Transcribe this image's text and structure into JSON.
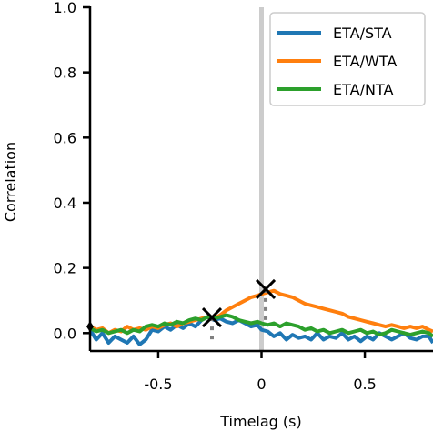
{
  "chart_data": {
    "type": "line",
    "title": "",
    "xlabel": "Timelag (s)",
    "ylabel": "Correlation",
    "xlim": [
      -0.83,
      0.83
    ],
    "ylim": [
      -0.055,
      1.0
    ],
    "x_ticks": [
      -0.5,
      0,
      0.5
    ],
    "x_tick_labels": [
      "-0.5",
      "0",
      "0.5"
    ],
    "y_ticks": [
      0.0,
      0.2,
      0.4,
      0.6,
      0.8,
      1.0
    ],
    "y_tick_labels": [
      "0.0",
      "0.2",
      "0.4",
      "0.6",
      "0.8",
      "1.0"
    ],
    "grid": false,
    "legend_position": "top-right",
    "zero_line": {
      "x": 0,
      "color": "#cccccc"
    },
    "series": [
      {
        "name": "ETA/STA",
        "color": "#1f77b4",
        "x": [
          -0.83,
          -0.8,
          -0.77,
          -0.74,
          -0.71,
          -0.68,
          -0.65,
          -0.62,
          -0.59,
          -0.56,
          -0.53,
          -0.5,
          -0.47,
          -0.44,
          -0.41,
          -0.38,
          -0.35,
          -0.32,
          -0.29,
          -0.26,
          -0.23,
          -0.2,
          -0.17,
          -0.14,
          -0.11,
          -0.08,
          -0.05,
          -0.02,
          0.0,
          0.03,
          0.06,
          0.09,
          0.12,
          0.15,
          0.18,
          0.21,
          0.24,
          0.27,
          0.3,
          0.33,
          0.36,
          0.39,
          0.42,
          0.45,
          0.48,
          0.51,
          0.54,
          0.57,
          0.6,
          0.63,
          0.66,
          0.69,
          0.72,
          0.75,
          0.78,
          0.81,
          0.83
        ],
        "y": [
          0.01,
          -0.02,
          0.0,
          -0.03,
          -0.01,
          -0.02,
          -0.03,
          -0.01,
          -0.035,
          -0.02,
          0.01,
          0.005,
          0.02,
          0.01,
          0.025,
          0.015,
          0.03,
          0.02,
          0.04,
          0.05,
          0.04,
          0.045,
          0.035,
          0.03,
          0.04,
          0.03,
          0.02,
          0.025,
          0.01,
          0.005,
          -0.01,
          0.0,
          -0.02,
          -0.005,
          -0.015,
          -0.01,
          -0.02,
          0.0,
          -0.02,
          -0.01,
          -0.015,
          0.0,
          -0.02,
          -0.01,
          -0.025,
          -0.01,
          -0.02,
          0.0,
          -0.01,
          -0.02,
          -0.01,
          0.0,
          -0.015,
          -0.02,
          -0.01,
          -0.01,
          -0.03
        ]
      },
      {
        "name": "ETA/WTA",
        "color": "#ff7f0e",
        "x": [
          -0.83,
          -0.8,
          -0.77,
          -0.74,
          -0.71,
          -0.68,
          -0.65,
          -0.62,
          -0.59,
          -0.56,
          -0.53,
          -0.5,
          -0.47,
          -0.44,
          -0.41,
          -0.38,
          -0.35,
          -0.32,
          -0.29,
          -0.26,
          -0.23,
          -0.2,
          -0.17,
          -0.14,
          -0.11,
          -0.08,
          -0.05,
          -0.02,
          0.0,
          0.03,
          0.06,
          0.09,
          0.12,
          0.15,
          0.18,
          0.21,
          0.24,
          0.27,
          0.3,
          0.33,
          0.36,
          0.39,
          0.42,
          0.45,
          0.48,
          0.51,
          0.54,
          0.57,
          0.6,
          0.63,
          0.66,
          0.69,
          0.72,
          0.75,
          0.78,
          0.81,
          0.83
        ],
        "y": [
          0.02,
          0.01,
          0.015,
          0.0,
          0.01,
          0.005,
          0.02,
          0.01,
          0.015,
          0.01,
          0.02,
          0.015,
          0.025,
          0.03,
          0.02,
          0.03,
          0.035,
          0.04,
          0.045,
          0.05,
          0.045,
          0.055,
          0.07,
          0.08,
          0.09,
          0.1,
          0.11,
          0.115,
          0.12,
          0.125,
          0.13,
          0.12,
          0.115,
          0.11,
          0.1,
          0.09,
          0.085,
          0.08,
          0.075,
          0.07,
          0.065,
          0.06,
          0.05,
          0.045,
          0.04,
          0.035,
          0.03,
          0.025,
          0.02,
          0.025,
          0.02,
          0.015,
          0.02,
          0.015,
          0.02,
          0.01,
          0.005
        ]
      },
      {
        "name": "ETA/NTA",
        "color": "#2ca02c",
        "x": [
          -0.83,
          -0.8,
          -0.77,
          -0.74,
          -0.71,
          -0.68,
          -0.65,
          -0.62,
          -0.59,
          -0.56,
          -0.53,
          -0.5,
          -0.47,
          -0.44,
          -0.41,
          -0.38,
          -0.35,
          -0.32,
          -0.29,
          -0.26,
          -0.23,
          -0.2,
          -0.17,
          -0.14,
          -0.11,
          -0.08,
          -0.05,
          -0.02,
          0.0,
          0.03,
          0.06,
          0.09,
          0.12,
          0.15,
          0.18,
          0.21,
          0.24,
          0.27,
          0.3,
          0.33,
          0.36,
          0.39,
          0.42,
          0.45,
          0.48,
          0.51,
          0.54,
          0.57,
          0.6,
          0.63,
          0.66,
          0.69,
          0.72,
          0.75,
          0.78,
          0.81,
          0.83
        ],
        "y": [
          0.015,
          0.005,
          0.01,
          0.0,
          0.005,
          0.01,
          0.0,
          0.01,
          0.005,
          0.02,
          0.025,
          0.02,
          0.03,
          0.025,
          0.035,
          0.03,
          0.04,
          0.045,
          0.04,
          0.05,
          0.045,
          0.05,
          0.055,
          0.05,
          0.04,
          0.035,
          0.03,
          0.035,
          0.03,
          0.025,
          0.03,
          0.02,
          0.03,
          0.025,
          0.02,
          0.01,
          0.015,
          0.005,
          0.01,
          0.0,
          0.005,
          0.01,
          0.0,
          0.005,
          0.01,
          0.0,
          0.005,
          -0.005,
          0.0,
          0.01,
          0.005,
          0.0,
          -0.005,
          0.0,
          0.005,
          0.0,
          -0.01
        ]
      }
    ],
    "markers": [
      {
        "x": -0.24,
        "y": 0.048,
        "symbol": "x",
        "color": "#000000",
        "dotted_drop_to": -0.03,
        "dotted_color": "#808080"
      },
      {
        "x": 0.02,
        "y": 0.135,
        "symbol": "x",
        "color": "#000000",
        "dotted_drop_to": 0.04,
        "dotted_color": "#808080"
      }
    ],
    "edge_marker": {
      "x": -0.83,
      "y": 0.02,
      "symbol": "diamond",
      "color": "#000000"
    }
  }
}
